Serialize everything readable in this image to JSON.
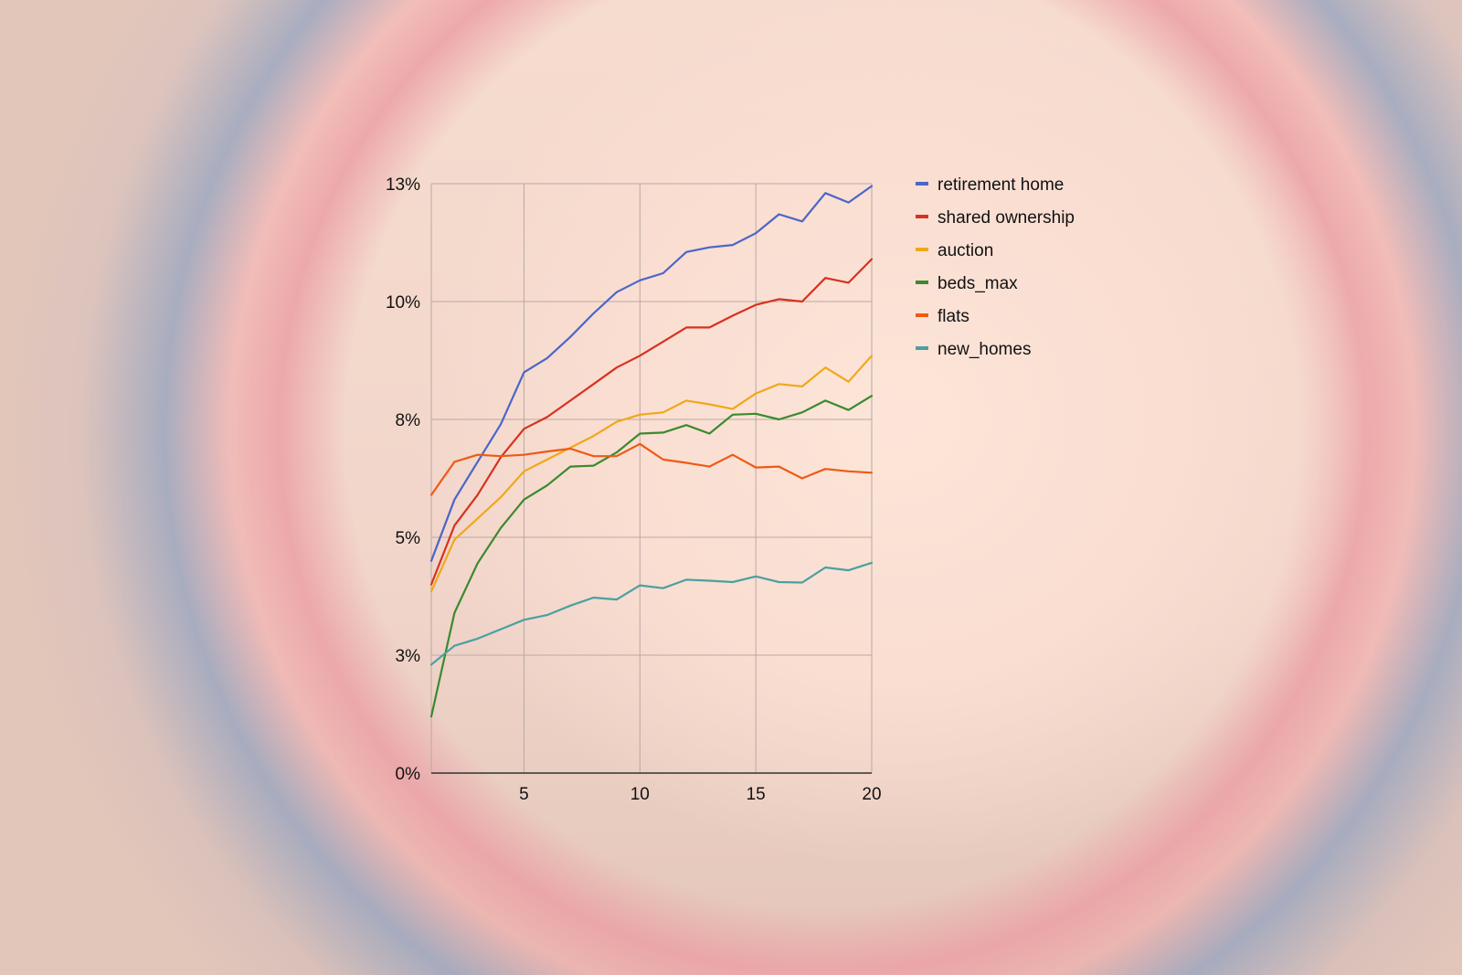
{
  "chart_data": {
    "type": "line",
    "x": [
      1,
      2,
      3,
      4,
      5,
      6,
      7,
      8,
      9,
      10,
      11,
      12,
      13,
      14,
      15,
      16,
      17,
      18,
      19,
      20
    ],
    "xticks": [
      5,
      10,
      15,
      20
    ],
    "xlim": [
      1,
      20
    ],
    "ylim": [
      0,
      12.5
    ],
    "yticks": [
      {
        "value": 0,
        "label": "0%"
      },
      {
        "value": 2.5,
        "label": "3%"
      },
      {
        "value": 5,
        "label": "5%"
      },
      {
        "value": 7.5,
        "label": "8%"
      },
      {
        "value": 10,
        "label": "10%"
      },
      {
        "value": 12.5,
        "label": "13%"
      }
    ],
    "grid": true,
    "legend_position": "right",
    "series": [
      {
        "name": "retirement home",
        "color": "#4a66c8",
        "values": [
          4.5,
          5.8,
          6.6,
          7.4,
          8.5,
          8.8,
          9.25,
          9.75,
          10.2,
          10.45,
          10.6,
          11.05,
          11.15,
          11.2,
          11.45,
          11.85,
          11.7,
          12.3,
          12.1,
          12.45
        ]
      },
      {
        "name": "shared ownership",
        "color": "#d6321f",
        "values": [
          4.0,
          5.25,
          5.9,
          6.7,
          7.3,
          7.55,
          7.9,
          8.25,
          8.6,
          8.85,
          9.15,
          9.45,
          9.45,
          9.7,
          9.93,
          10.05,
          10.0,
          10.5,
          10.4,
          10.9
        ]
      },
      {
        "name": "auction",
        "color": "#f0a81a",
        "values": [
          3.85,
          4.95,
          5.4,
          5.85,
          6.4,
          6.65,
          6.9,
          7.15,
          7.45,
          7.6,
          7.65,
          7.9,
          7.82,
          7.72,
          8.05,
          8.25,
          8.2,
          8.6,
          8.3,
          8.85
        ]
      },
      {
        "name": "beds_max",
        "color": "#3a8a2e",
        "values": [
          1.2,
          3.4,
          4.45,
          5.2,
          5.8,
          6.1,
          6.5,
          6.52,
          6.8,
          7.2,
          7.22,
          7.38,
          7.2,
          7.6,
          7.62,
          7.5,
          7.65,
          7.9,
          7.7,
          8.0
        ]
      },
      {
        "name": "flats",
        "color": "#ee5a14",
        "values": [
          5.9,
          6.6,
          6.75,
          6.72,
          6.75,
          6.82,
          6.88,
          6.72,
          6.72,
          6.98,
          6.65,
          6.58,
          6.5,
          6.75,
          6.48,
          6.5,
          6.25,
          6.45,
          6.4,
          6.37
        ]
      },
      {
        "name": "new_homes",
        "color": "#4aa0a0",
        "values": [
          2.3,
          2.7,
          2.85,
          3.05,
          3.25,
          3.35,
          3.55,
          3.72,
          3.68,
          3.98,
          3.92,
          4.1,
          4.08,
          4.05,
          4.17,
          4.05,
          4.04,
          4.36,
          4.3,
          4.46
        ]
      }
    ]
  }
}
